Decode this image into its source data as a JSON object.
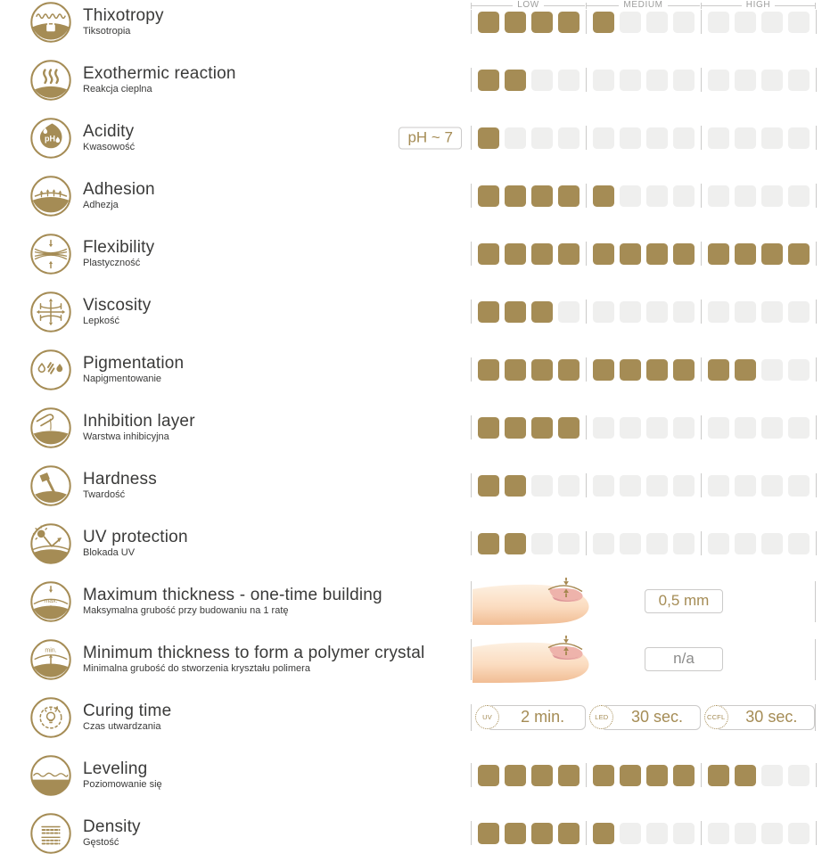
{
  "colors": {
    "accent": "#a58c55",
    "empty_cell": "#efefee",
    "border_line": "#cbcac9",
    "title_text": "#3a3a39",
    "header_text": "#9d9d9c",
    "na_text": "#8c8c8b",
    "finger_skin": "#fbdcc0",
    "nail_pink": "#eeb3ab"
  },
  "header": {
    "low": "LOW",
    "medium": "MEDIUM",
    "high": "HIGH"
  },
  "rows": [
    {
      "icon": "thixotropy-icon",
      "title": "Thixotropy",
      "subtitle": "Tiksotropia",
      "type": "bar",
      "value": 5
    },
    {
      "icon": "exothermic-icon",
      "title": "Exothermic reaction",
      "subtitle": "Reakcja cieplna",
      "type": "bar",
      "value": 2
    },
    {
      "icon": "acidity-icon",
      "title": "Acidity",
      "subtitle": "Kwasowość",
      "type": "bar",
      "value": 1,
      "badge": "pH ~ 7"
    },
    {
      "icon": "adhesion-icon",
      "title": "Adhesion",
      "subtitle": "Adhezja",
      "type": "bar",
      "value": 5
    },
    {
      "icon": "flexibility-icon",
      "title": "Flexibility",
      "subtitle": "Plastyczność",
      "type": "bar",
      "value": 12
    },
    {
      "icon": "viscosity-icon",
      "title": "Viscosity",
      "subtitle": "Lepkość",
      "type": "bar",
      "value": 3
    },
    {
      "icon": "pigmentation-icon",
      "title": "Pigmentation",
      "subtitle": "Napigmentowanie",
      "type": "bar",
      "value": 10
    },
    {
      "icon": "inhibition-layer-icon",
      "title": "Inhibition layer",
      "subtitle": "Warstwa inhibicyjna",
      "type": "bar",
      "value": 4
    },
    {
      "icon": "hardness-icon",
      "title": "Hardness",
      "subtitle": "Twardość",
      "type": "bar",
      "value": 2
    },
    {
      "icon": "uv-protection-icon",
      "title": "UV protection",
      "subtitle": "Blokada UV",
      "type": "bar",
      "value": 2
    },
    {
      "icon": "max-thickness-icon",
      "title": "Maximum thickness - one-time building",
      "subtitle": "Maksymalna grubość przy budowaniu na 1 ratę",
      "type": "thickness",
      "value_label": "0,5 mm"
    },
    {
      "icon": "min-thickness-icon",
      "title": "Minimum thickness to form a polymer crystal",
      "subtitle": "Minimalna grubość do stworzenia kryształu polimera",
      "type": "thickness",
      "value_label": "n/a"
    },
    {
      "icon": "curing-time-icon",
      "title": "Curing time",
      "subtitle": "Czas utwardzania",
      "type": "curing",
      "badges": [
        {
          "lamp": "UV",
          "time": "2 min."
        },
        {
          "lamp": "LED",
          "time": "30 sec."
        },
        {
          "lamp": "CCFL",
          "time": "30 sec."
        }
      ]
    },
    {
      "icon": "leveling-icon",
      "title": "Leveling",
      "subtitle": "Poziomowanie się",
      "type": "bar",
      "value": 10
    },
    {
      "icon": "density-icon",
      "title": "Density",
      "subtitle": "Gęstość",
      "type": "bar",
      "value": 5
    }
  ],
  "chart_data": {
    "type": "bar",
    "scale_labels": [
      "LOW",
      "MEDIUM",
      "HIGH"
    ],
    "cells_per_segment": 4,
    "max": 12,
    "categories": [
      "Thixotropy",
      "Exothermic reaction",
      "Acidity",
      "Adhesion",
      "Flexibility",
      "Viscosity",
      "Pigmentation",
      "Inhibition layer",
      "Hardness",
      "UV protection",
      "Leveling",
      "Density"
    ],
    "values": [
      5,
      2,
      1,
      5,
      12,
      3,
      10,
      4,
      2,
      2,
      10,
      5
    ],
    "annotations": [
      {
        "property": "Acidity",
        "value": "pH ~ 7"
      },
      {
        "property": "Maximum thickness - one-time building",
        "value": "0,5 mm"
      },
      {
        "property": "Minimum thickness to form a polymer crystal",
        "value": "n/a"
      },
      {
        "property": "Curing time",
        "values": [
          {
            "lamp": "UV",
            "time": "2 min."
          },
          {
            "lamp": "LED",
            "time": "30 sec."
          },
          {
            "lamp": "CCFL",
            "time": "30 sec."
          }
        ]
      }
    ],
    "legend_position": "top",
    "grid": false
  }
}
